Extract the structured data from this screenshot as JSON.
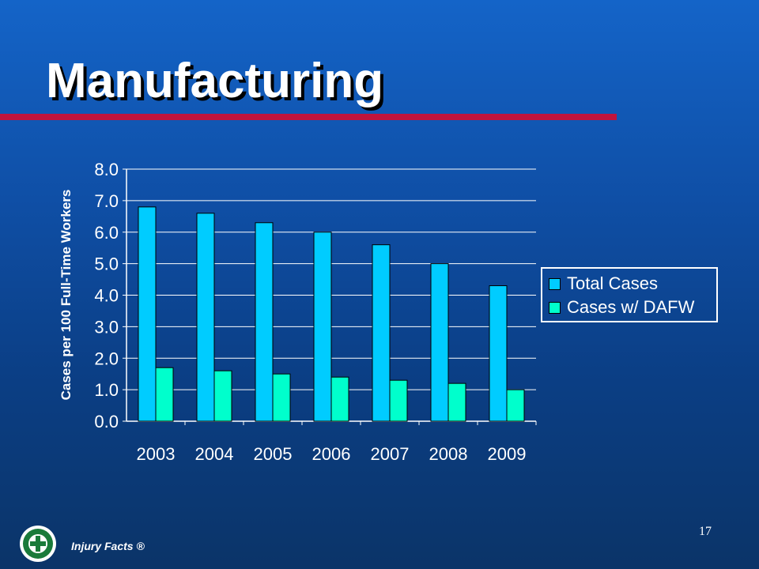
{
  "slide": {
    "title": "Manufacturing",
    "page_number": "17",
    "footer": "Injury Facts ®"
  },
  "colors": {
    "title_rule": "#c0143c",
    "total_cases": "#00ccff",
    "cases_dafw": "#00ffcc"
  },
  "logo_icon": "national-safety-council-logo",
  "chart_data": {
    "type": "bar",
    "categories": [
      "2003",
      "2004",
      "2005",
      "2006",
      "2007",
      "2008",
      "2009"
    ],
    "series": [
      {
        "name": "Total Cases",
        "values": [
          6.8,
          6.6,
          6.3,
          6.0,
          5.6,
          5.0,
          4.3
        ]
      },
      {
        "name": "Cases w/ DAFW",
        "values": [
          1.7,
          1.6,
          1.5,
          1.4,
          1.3,
          1.2,
          1.0
        ]
      }
    ],
    "ylabel": "Cases per 100 Full-Time Workers",
    "ylim": [
      0,
      8
    ],
    "yticks": [
      "0.0",
      "1.0",
      "2.0",
      "3.0",
      "4.0",
      "5.0",
      "6.0",
      "7.0",
      "8.0"
    ],
    "grid": true,
    "legend_position": "right"
  }
}
